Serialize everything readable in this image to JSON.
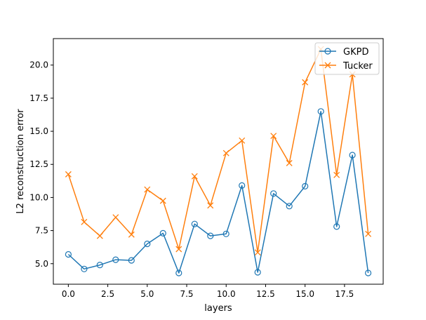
{
  "chart_data": {
    "type": "line",
    "title": "",
    "xlabel": "layers",
    "ylabel": "L2 reconstruction error",
    "xlim": [
      -0.95,
      19.95
    ],
    "ylim": [
      3.45,
      22.0
    ],
    "xticks": [
      0.0,
      2.5,
      5.0,
      7.5,
      10.0,
      12.5,
      15.0,
      17.5
    ],
    "xtick_labels": [
      "0.0",
      "2.5",
      "5.0",
      "7.5",
      "10.0",
      "12.5",
      "15.0",
      "17.5"
    ],
    "yticks": [
      5.0,
      7.5,
      10.0,
      12.5,
      15.0,
      17.5,
      20.0
    ],
    "ytick_labels": [
      "5.0",
      "7.5",
      "10.0",
      "12.5",
      "15.0",
      "17.5",
      "20.0"
    ],
    "grid": false,
    "legend_position": "top-right",
    "x": [
      0,
      1,
      2,
      3,
      4,
      5,
      6,
      7,
      8,
      9,
      10,
      11,
      12,
      13,
      14,
      15,
      16,
      17,
      18,
      19
    ],
    "series": [
      {
        "name": "GKPD",
        "color": "#1f77b4",
        "marker": "circle",
        "values": [
          5.7,
          4.6,
          4.9,
          5.3,
          5.25,
          6.5,
          7.3,
          4.3,
          8.0,
          7.1,
          7.25,
          10.9,
          4.35,
          10.3,
          9.35,
          10.85,
          16.5,
          7.8,
          13.2,
          4.3
        ]
      },
      {
        "name": "Tucker",
        "color": "#ff7f0e",
        "marker": "x",
        "values": [
          11.75,
          8.15,
          7.1,
          8.5,
          7.2,
          10.6,
          9.75,
          6.1,
          11.6,
          9.4,
          13.35,
          14.3,
          5.85,
          14.65,
          12.6,
          18.7,
          21.2,
          11.7,
          19.3,
          7.25
        ]
      }
    ]
  }
}
